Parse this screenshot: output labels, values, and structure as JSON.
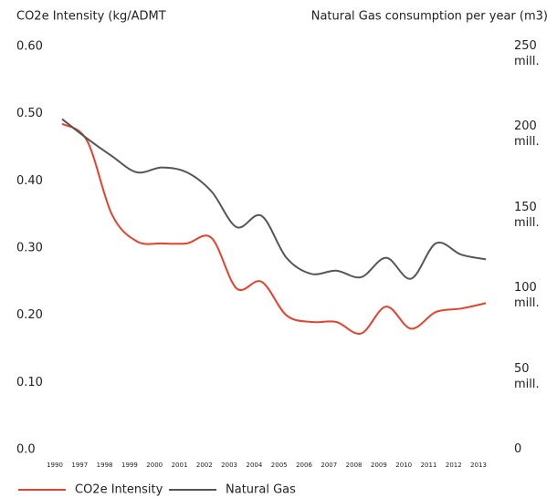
{
  "chart_data": {
    "type": "line",
    "y_title": "CO2e Intensity (kg/ADMT",
    "y2_title": "Natural Gas consumption per year (m3)",
    "categories": [
      "1990",
      "1997",
      "1998",
      "1999",
      "2000",
      "2001",
      "2002",
      "2003",
      "2004",
      "2005",
      "2006",
      "2007",
      "2008",
      "2009",
      "2010",
      "2011",
      "2012",
      "2013"
    ],
    "series": [
      {
        "name": "CO2e Intensity",
        "color": "#e8402a",
        "values": [
          0.485,
          0.46,
          0.35,
          0.31,
          0.307,
          0.307,
          0.315,
          0.24,
          0.25,
          0.2,
          0.19,
          0.19,
          0.173,
          0.213,
          0.18,
          0.205,
          0.21,
          0.218
        ]
      },
      {
        "name": "Natural Gas",
        "color": "#555555",
        "axis": "y2",
        "values": [
          205,
          193,
          182,
          172,
          175,
          172,
          160,
          138,
          145,
          119,
          109,
          111,
          107,
          119,
          106,
          128,
          121,
          118
        ]
      }
    ],
    "ylim": [
      0,
      0.6
    ],
    "yticks": [
      {
        "value": 0,
        "label": "0.0"
      },
      {
        "value": 0.1,
        "label": "0.10"
      },
      {
        "value": 0.2,
        "label": "0.20"
      },
      {
        "value": 0.3,
        "label": "0.30"
      },
      {
        "value": 0.4,
        "label": "0.40"
      },
      {
        "value": 0.5,
        "label": "0.50"
      },
      {
        "value": 0.6,
        "label": "0.60"
      }
    ],
    "y2lim": [
      0,
      250
    ],
    "y2ticks": [
      0,
      {
        "value": 50,
        "label": "50 mill."
      },
      {
        "value": 100,
        "label": "100 mill."
      },
      {
        "value": 150,
        "label": "150 mill."
      },
      {
        "value": 200,
        "label": "200 mill."
      },
      {
        "value": 250,
        "label": "250 mill."
      }
    ],
    "legend": "bottom-left"
  }
}
